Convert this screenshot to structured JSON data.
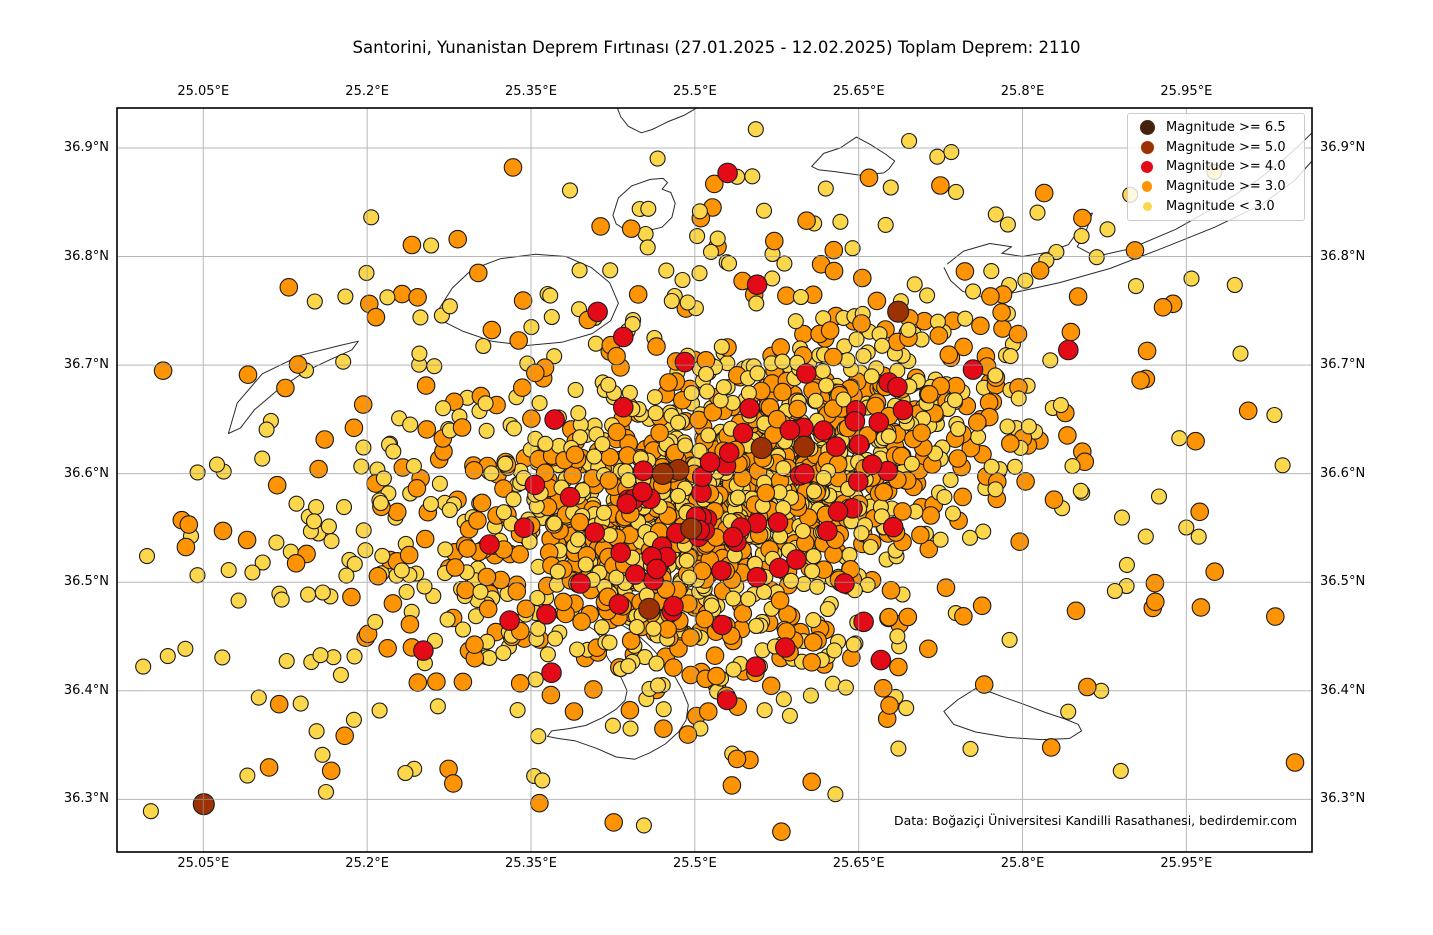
{
  "figure": {
    "title": "Santorini, Yunanistan Deprem Fırtınası (27.01.2025 - 12.02.2025) Toplam Deprem: 2110",
    "attribution": "Data: Boğaziçi Üniversitesi Kandilli Rasathanesi, bedirdemir.com"
  },
  "chart_data": {
    "type": "scatter",
    "title": "Santorini, Yunanistan Deprem Fırtınası (27.01.2025 - 12.02.2025) Toplam Deprem: 2110",
    "xlabel": "",
    "ylabel": "",
    "grid": true,
    "legend_position": "upper right",
    "total_earthquakes": 2110,
    "xlim": [
      24.971,
      26.065
    ],
    "ylim": [
      36.2515,
      36.9368
    ],
    "xticks": [
      {
        "value": 25.05,
        "label": "25.05°E"
      },
      {
        "value": 25.2,
        "label": "25.2°E"
      },
      {
        "value": 25.35,
        "label": "25.35°E"
      },
      {
        "value": 25.5,
        "label": "25.5°E"
      },
      {
        "value": 25.65,
        "label": "25.65°E"
      },
      {
        "value": 25.8,
        "label": "25.8°E"
      },
      {
        "value": 25.95,
        "label": "25.95°E"
      }
    ],
    "yticks": [
      {
        "value": 36.9,
        "label": "36.9°N"
      },
      {
        "value": 36.8,
        "label": "36.8°N"
      },
      {
        "value": 36.7,
        "label": "36.7°N"
      },
      {
        "value": 36.6,
        "label": "36.6°N"
      },
      {
        "value": 36.5,
        "label": "36.5°N"
      },
      {
        "value": 36.4,
        "label": "36.4°N"
      },
      {
        "value": 36.3,
        "label": "36.3°N"
      }
    ],
    "style": {
      "grid_color": "#9a9a9a",
      "grid_opacity": 0.7,
      "coast_color": "#2a2a2a",
      "border_color": "#000000",
      "point_edge_color": "#1b1b1b"
    },
    "magnitude_classes": [
      {
        "id": "ge65",
        "label": "Magnitude >= 6.5",
        "color": "#44220b",
        "diameter": 23,
        "legend_marker": 15,
        "count": 0
      },
      {
        "id": "ge5",
        "label": "Magnitude >= 5.0",
        "color": "#9c3203",
        "diameter": 21,
        "legend_marker": 13,
        "count": 8
      },
      {
        "id": "ge4",
        "label": "Magnitude >= 4.0",
        "color": "#e30b17",
        "diameter": 19.5,
        "legend_marker": 12,
        "count": 87
      },
      {
        "id": "ge3",
        "label": "Magnitude >= 3.0",
        "color": "#fe9303",
        "diameter": 17.5,
        "legend_marker": 10.5,
        "count": 955
      },
      {
        "id": "lt3",
        "label": "Magnitude < 3.0",
        "color": "#fcd74c",
        "diameter": 15,
        "legend_marker": 9,
        "count": 1060
      }
    ],
    "seed": 42,
    "clusters": [
      {
        "name": "dense-core",
        "cx": 25.53,
        "cy": 36.58,
        "sx": 0.115,
        "sy": 0.05,
        "angle": 22,
        "counts": {
          "lt3": 480,
          "ge3": 560,
          "ge4": 62,
          "ge5": 5
        }
      },
      {
        "name": "mid-spread",
        "cx": 25.46,
        "cy": 36.6,
        "sx": 0.19,
        "sy": 0.085,
        "angle": 18,
        "counts": {
          "lt3": 300,
          "ge3": 210,
          "ge4": 11,
          "ge5": 2
        }
      },
      {
        "name": "wide-halo",
        "cx": 25.5,
        "cy": 36.615,
        "sx": 0.3,
        "sy": 0.155,
        "angle": 8,
        "counts": {
          "lt3": 230,
          "ge3": 115,
          "ge4": 0,
          "ge5": 0
        }
      },
      {
        "name": "south-extension",
        "cx": 25.575,
        "cy": 36.455,
        "sx": 0.085,
        "sy": 0.055,
        "angle": 15,
        "counts": {
          "lt3": 50,
          "ge3": 70,
          "ge4": 11,
          "ge5": 0
        }
      }
    ],
    "extra_points": [
      {
        "class": "ge5",
        "lon": 25.0505,
        "lat": 36.2955
      },
      {
        "class": "ge4",
        "lon": 25.53,
        "lat": 36.877
      },
      {
        "class": "ge4",
        "lon": 25.557,
        "lat": 36.774
      },
      {
        "class": "ge4",
        "lon": 25.411,
        "lat": 36.749
      }
    ],
    "coastlines": [
      {
        "name": "north-coast-fragment",
        "closed": false,
        "points": [
          [
            25.429,
            36.937
          ],
          [
            25.432,
            36.929
          ],
          [
            25.439,
            36.92
          ],
          [
            25.451,
            36.914
          ],
          [
            25.461,
            36.917
          ],
          [
            25.475,
            36.924
          ],
          [
            25.49,
            36.93
          ],
          [
            25.502,
            36.937
          ]
        ]
      },
      {
        "name": "small-island-north",
        "closed": true,
        "points": [
          [
            25.425,
            36.838
          ],
          [
            25.43,
            36.854
          ],
          [
            25.442,
            36.865
          ],
          [
            25.459,
            36.871
          ],
          [
            25.471,
            36.872
          ],
          [
            25.475,
            36.868
          ],
          [
            25.47,
            36.862
          ],
          [
            25.478,
            36.859
          ],
          [
            25.482,
            36.849
          ],
          [
            25.479,
            36.836
          ],
          [
            25.47,
            36.827
          ],
          [
            25.454,
            36.823
          ],
          [
            25.439,
            36.823
          ],
          [
            25.428,
            36.83
          ]
        ]
      },
      {
        "name": "small-island-northeast",
        "closed": true,
        "points": [
          [
            25.607,
            36.883
          ],
          [
            25.618,
            36.895
          ],
          [
            25.633,
            36.9
          ],
          [
            25.648,
            36.91
          ],
          [
            25.661,
            36.903
          ],
          [
            25.675,
            36.894
          ],
          [
            25.683,
            36.888
          ],
          [
            25.678,
            36.881
          ],
          [
            25.673,
            36.877
          ],
          [
            25.651,
            36.875
          ],
          [
            25.629,
            36.878
          ],
          [
            25.613,
            36.88
          ]
        ]
      },
      {
        "name": "amorgos-south-coast",
        "closed": false,
        "points": [
          [
            25.728,
            36.79
          ],
          [
            25.734,
            36.778
          ],
          [
            25.745,
            36.768
          ],
          [
            25.763,
            36.763
          ],
          [
            25.789,
            36.766
          ],
          [
            25.834,
            36.776
          ],
          [
            25.88,
            36.789
          ],
          [
            25.929,
            36.808
          ],
          [
            25.976,
            36.827
          ],
          [
            26.019,
            36.848
          ],
          [
            26.049,
            36.87
          ],
          [
            26.065,
            36.888
          ]
        ]
      },
      {
        "name": "amorgos-north-coast",
        "closed": false,
        "points": [
          [
            25.731,
            36.793
          ],
          [
            25.746,
            36.805
          ],
          [
            25.77,
            36.812
          ],
          [
            25.79,
            36.809
          ],
          [
            25.781,
            36.803
          ],
          [
            25.8,
            36.8
          ],
          [
            25.823,
            36.804
          ],
          [
            25.842,
            36.811
          ],
          [
            25.852,
            36.825
          ],
          [
            25.858,
            36.839
          ],
          [
            25.864,
            36.84
          ],
          [
            25.858,
            36.823
          ],
          [
            25.85,
            36.809
          ],
          [
            25.867,
            36.8
          ],
          [
            25.898,
            36.807
          ],
          [
            25.94,
            36.825
          ],
          [
            25.981,
            36.848
          ],
          [
            26.016,
            36.871
          ],
          [
            26.041,
            36.891
          ],
          [
            26.057,
            36.906
          ],
          [
            26.065,
            36.914
          ]
        ]
      },
      {
        "name": "sikinos",
        "closed": true,
        "points": [
          [
            25.073,
            36.637
          ],
          [
            25.081,
            36.665
          ],
          [
            25.104,
            36.692
          ],
          [
            25.139,
            36.709
          ],
          [
            25.175,
            36.718
          ],
          [
            25.192,
            36.722
          ],
          [
            25.186,
            36.714
          ],
          [
            25.166,
            36.705
          ],
          [
            25.143,
            36.694
          ],
          [
            25.118,
            36.677
          ],
          [
            25.097,
            36.659
          ],
          [
            25.084,
            36.642
          ]
        ]
      },
      {
        "name": "ios",
        "closed": true,
        "points": [
          [
            25.264,
            36.749
          ],
          [
            25.278,
            36.771
          ],
          [
            25.296,
            36.788
          ],
          [
            25.322,
            36.798
          ],
          [
            25.354,
            36.802
          ],
          [
            25.382,
            36.8
          ],
          [
            25.405,
            36.79
          ],
          [
            25.422,
            36.776
          ],
          [
            25.43,
            36.757
          ],
          [
            25.423,
            36.741
          ],
          [
            25.406,
            36.729
          ],
          [
            25.378,
            36.721
          ],
          [
            25.346,
            36.718
          ],
          [
            25.314,
            36.722
          ],
          [
            25.288,
            36.731
          ],
          [
            25.272,
            36.739
          ]
        ]
      },
      {
        "name": "santorini-caldera",
        "closed": true,
        "points": [
          [
            25.365,
            36.47
          ],
          [
            25.377,
            36.477
          ],
          [
            25.393,
            36.478
          ],
          [
            25.41,
            36.474
          ],
          [
            25.424,
            36.467
          ],
          [
            25.434,
            36.46
          ],
          [
            25.447,
            36.452
          ],
          [
            25.459,
            36.441
          ],
          [
            25.47,
            36.429
          ],
          [
            25.48,
            36.416
          ],
          [
            25.488,
            36.402
          ],
          [
            25.494,
            36.387
          ],
          [
            25.492,
            36.373
          ],
          [
            25.485,
            36.362
          ],
          [
            25.473,
            36.351
          ],
          [
            25.459,
            36.343
          ],
          [
            25.445,
            36.337
          ],
          [
            25.428,
            36.339
          ],
          [
            25.41,
            36.347
          ],
          [
            25.39,
            36.354
          ],
          [
            25.375,
            36.356
          ],
          [
            25.365,
            36.358
          ],
          [
            25.369,
            36.363
          ],
          [
            25.384,
            36.365
          ],
          [
            25.4,
            36.368
          ],
          [
            25.415,
            36.375
          ],
          [
            25.428,
            36.383
          ],
          [
            25.436,
            36.391
          ],
          [
            25.438,
            36.4
          ],
          [
            25.433,
            36.411
          ],
          [
            25.427,
            36.421
          ],
          [
            25.421,
            36.429
          ],
          [
            25.417,
            36.437
          ],
          [
            25.42,
            36.443
          ],
          [
            25.414,
            36.449
          ],
          [
            25.408,
            36.456
          ],
          [
            25.4,
            36.461
          ],
          [
            25.389,
            36.467
          ]
        ]
      },
      {
        "name": "anafi",
        "closed": true,
        "points": [
          [
            25.728,
            36.381
          ],
          [
            25.741,
            36.392
          ],
          [
            25.757,
            36.402
          ],
          [
            25.77,
            36.399
          ],
          [
            25.783,
            36.394
          ],
          [
            25.8,
            36.388
          ],
          [
            25.821,
            36.38
          ],
          [
            25.839,
            36.374
          ],
          [
            25.851,
            36.369
          ],
          [
            25.854,
            36.363
          ],
          [
            25.843,
            36.356
          ],
          [
            25.818,
            36.355
          ],
          [
            25.787,
            36.357
          ],
          [
            25.757,
            36.362
          ],
          [
            25.737,
            36.369
          ]
        ]
      }
    ]
  }
}
